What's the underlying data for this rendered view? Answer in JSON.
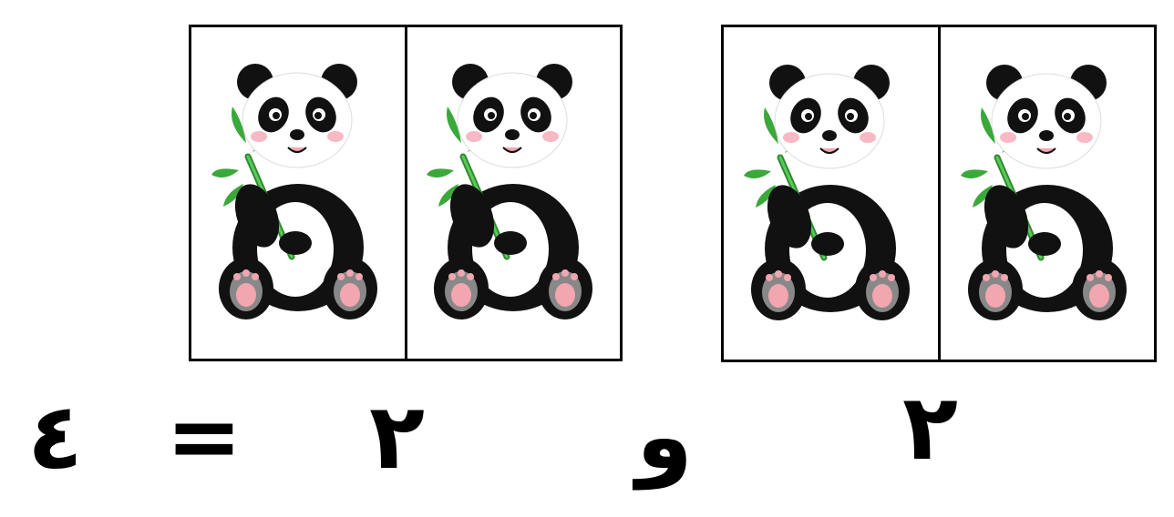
{
  "equation": {
    "left_count": "٢",
    "conjunction": "و",
    "right_count": "٢",
    "equals": "=",
    "total": "٤"
  },
  "groups": [
    {
      "items": [
        "panda-icon",
        "panda-icon"
      ]
    },
    {
      "items": [
        "panda-icon",
        "panda-icon"
      ]
    }
  ],
  "colors": {
    "border": "#000000",
    "bamboo": "#3aa83a",
    "paw": "#f2a6b0",
    "cheek": "#f7b9c4"
  }
}
